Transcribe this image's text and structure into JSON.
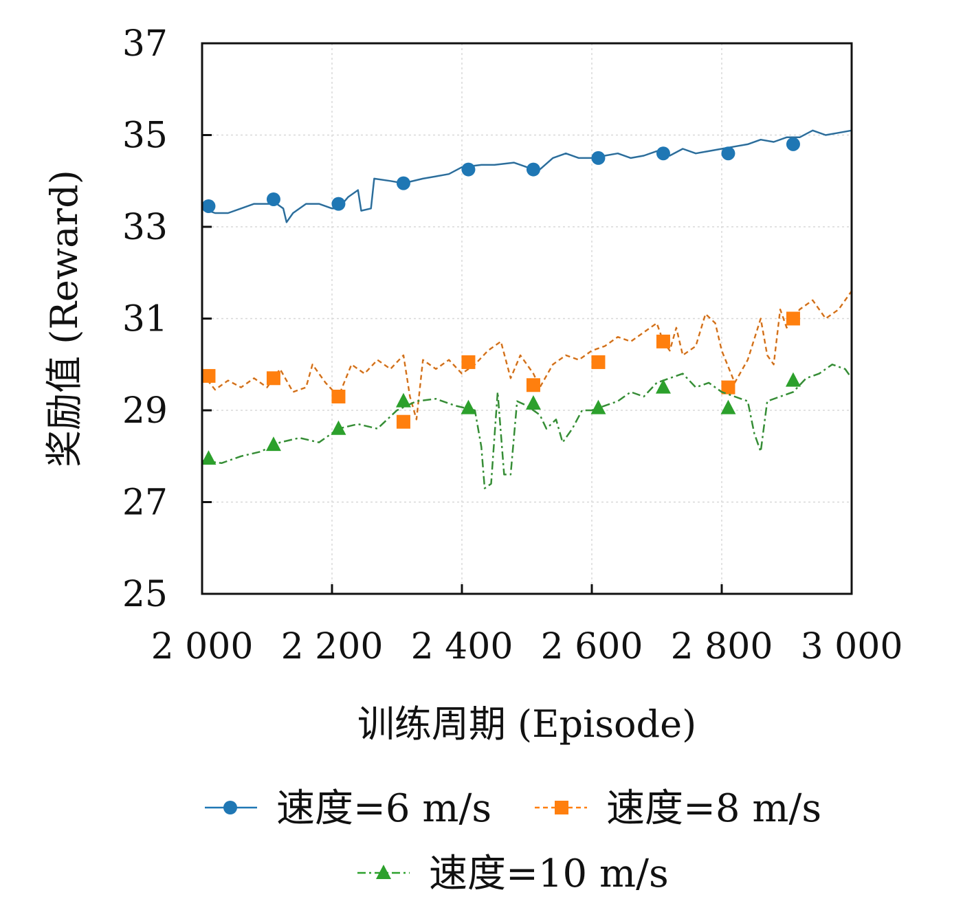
{
  "chart_data": {
    "type": "line",
    "title": "",
    "xlabel": "训练周期 (Episode)",
    "ylabel": "奖励值 (Reward)",
    "xlim": [
      2000,
      3000
    ],
    "ylim": [
      25,
      37
    ],
    "x_ticks": [
      2000,
      2200,
      2400,
      2600,
      2800,
      3000
    ],
    "x_tick_labels": [
      "2 000",
      "2 200",
      "2 400",
      "2 600",
      "2 800",
      "3 000"
    ],
    "y_ticks": [
      25,
      27,
      29,
      31,
      33,
      35,
      37
    ],
    "y_tick_labels": [
      "25",
      "27",
      "29",
      "31",
      "33",
      "35",
      "37"
    ],
    "grid": "light dotted at major ticks",
    "legend_position": "below",
    "series": [
      {
        "name": "速度=6 m/s",
        "color": "#1f77b4",
        "marker": "circle",
        "line_style": "solid",
        "marker_x": [
          2010,
          2110,
          2210,
          2310,
          2410,
          2510,
          2610,
          2710,
          2810,
          2910
        ],
        "marker_y": [
          33.45,
          33.6,
          33.5,
          33.95,
          34.25,
          34.25,
          34.5,
          34.6,
          34.6,
          34.8
        ],
        "line": [
          [
            2000,
            33.4
          ],
          [
            2020,
            33.3
          ],
          [
            2040,
            33.3
          ],
          [
            2060,
            33.4
          ],
          [
            2080,
            33.5
          ],
          [
            2100,
            33.5
          ],
          [
            2115,
            33.5
          ],
          [
            2125,
            33.4
          ],
          [
            2130,
            33.1
          ],
          [
            2140,
            33.3
          ],
          [
            2160,
            33.5
          ],
          [
            2180,
            33.5
          ],
          [
            2200,
            33.4
          ],
          [
            2210,
            33.4
          ],
          [
            2225,
            33.65
          ],
          [
            2240,
            33.8
          ],
          [
            2245,
            33.35
          ],
          [
            2260,
            33.4
          ],
          [
            2265,
            34.05
          ],
          [
            2290,
            34.0
          ],
          [
            2310,
            33.95
          ],
          [
            2340,
            34.05
          ],
          [
            2360,
            34.1
          ],
          [
            2380,
            34.15
          ],
          [
            2400,
            34.3
          ],
          [
            2430,
            34.35
          ],
          [
            2450,
            34.35
          ],
          [
            2480,
            34.4
          ],
          [
            2500,
            34.3
          ],
          [
            2520,
            34.25
          ],
          [
            2540,
            34.5
          ],
          [
            2560,
            34.6
          ],
          [
            2580,
            34.5
          ],
          [
            2600,
            34.5
          ],
          [
            2620,
            34.55
          ],
          [
            2640,
            34.6
          ],
          [
            2660,
            34.5
          ],
          [
            2680,
            34.55
          ],
          [
            2700,
            34.65
          ],
          [
            2720,
            34.55
          ],
          [
            2740,
            34.7
          ],
          [
            2760,
            34.6
          ],
          [
            2780,
            34.65
          ],
          [
            2800,
            34.7
          ],
          [
            2820,
            34.75
          ],
          [
            2840,
            34.8
          ],
          [
            2860,
            34.9
          ],
          [
            2880,
            34.85
          ],
          [
            2900,
            34.95
          ],
          [
            2920,
            34.95
          ],
          [
            2940,
            35.1
          ],
          [
            2960,
            35.0
          ],
          [
            2980,
            35.05
          ],
          [
            3000,
            35.1
          ]
        ]
      },
      {
        "name": "速度=8 m/s",
        "color": "#ff7f0e",
        "marker": "square",
        "line_style": "dashed",
        "marker_x": [
          2010,
          2110,
          2210,
          2310,
          2410,
          2510,
          2610,
          2710,
          2810,
          2910
        ],
        "marker_y": [
          29.75,
          29.7,
          29.3,
          28.75,
          30.05,
          29.55,
          30.05,
          30.5,
          29.5,
          31.0
        ],
        "line": [
          [
            2000,
            29.8
          ],
          [
            2020,
            29.45
          ],
          [
            2040,
            29.65
          ],
          [
            2060,
            29.5
          ],
          [
            2080,
            29.7
          ],
          [
            2100,
            29.5
          ],
          [
            2120,
            29.9
          ],
          [
            2140,
            29.4
          ],
          [
            2160,
            29.5
          ],
          [
            2170,
            30.0
          ],
          [
            2190,
            29.6
          ],
          [
            2210,
            29.3
          ],
          [
            2230,
            30.0
          ],
          [
            2250,
            29.8
          ],
          [
            2270,
            30.1
          ],
          [
            2290,
            29.9
          ],
          [
            2310,
            30.2
          ],
          [
            2320,
            29.3
          ],
          [
            2330,
            28.8
          ],
          [
            2340,
            30.1
          ],
          [
            2360,
            29.9
          ],
          [
            2380,
            30.1
          ],
          [
            2400,
            29.8
          ],
          [
            2420,
            30.0
          ],
          [
            2440,
            30.3
          ],
          [
            2460,
            30.5
          ],
          [
            2475,
            29.7
          ],
          [
            2490,
            30.2
          ],
          [
            2510,
            29.8
          ],
          [
            2520,
            29.5
          ],
          [
            2540,
            30.0
          ],
          [
            2560,
            30.2
          ],
          [
            2580,
            30.1
          ],
          [
            2600,
            30.3
          ],
          [
            2620,
            30.4
          ],
          [
            2640,
            30.6
          ],
          [
            2660,
            30.5
          ],
          [
            2680,
            30.7
          ],
          [
            2700,
            30.9
          ],
          [
            2710,
            30.5
          ],
          [
            2720,
            30.3
          ],
          [
            2730,
            30.8
          ],
          [
            2740,
            30.2
          ],
          [
            2760,
            30.4
          ],
          [
            2775,
            31.1
          ],
          [
            2790,
            30.9
          ],
          [
            2800,
            30.3
          ],
          [
            2820,
            29.6
          ],
          [
            2840,
            30.1
          ],
          [
            2860,
            31.0
          ],
          [
            2870,
            30.2
          ],
          [
            2880,
            30.0
          ],
          [
            2890,
            31.2
          ],
          [
            2900,
            30.8
          ],
          [
            2920,
            31.2
          ],
          [
            2940,
            31.4
          ],
          [
            2960,
            31.0
          ],
          [
            2980,
            31.2
          ],
          [
            3000,
            31.6
          ]
        ]
      },
      {
        "name": "速度=10 m/s",
        "color": "#2ca02c",
        "marker": "triangle",
        "line_style": "dash-dot",
        "marker_x": [
          2010,
          2110,
          2210,
          2310,
          2410,
          2510,
          2610,
          2710,
          2810,
          2910
        ],
        "marker_y": [
          27.95,
          28.25,
          28.6,
          29.2,
          29.05,
          29.15,
          29.05,
          29.5,
          29.05,
          29.65
        ],
        "line": [
          [
            2000,
            27.9
          ],
          [
            2030,
            27.85
          ],
          [
            2060,
            28.0
          ],
          [
            2090,
            28.1
          ],
          [
            2120,
            28.3
          ],
          [
            2150,
            28.4
          ],
          [
            2180,
            28.3
          ],
          [
            2210,
            28.6
          ],
          [
            2240,
            28.7
          ],
          [
            2270,
            28.6
          ],
          [
            2300,
            29.0
          ],
          [
            2330,
            29.2
          ],
          [
            2360,
            29.25
          ],
          [
            2390,
            29.1
          ],
          [
            2420,
            29.0
          ],
          [
            2430,
            28.2
          ],
          [
            2435,
            27.3
          ],
          [
            2445,
            27.4
          ],
          [
            2455,
            29.4
          ],
          [
            2465,
            27.6
          ],
          [
            2475,
            27.6
          ],
          [
            2485,
            29.2
          ],
          [
            2500,
            29.1
          ],
          [
            2520,
            28.9
          ],
          [
            2530,
            28.6
          ],
          [
            2545,
            28.8
          ],
          [
            2555,
            28.3
          ],
          [
            2570,
            28.6
          ],
          [
            2585,
            29.0
          ],
          [
            2600,
            29.0
          ],
          [
            2620,
            29.1
          ],
          [
            2640,
            29.2
          ],
          [
            2660,
            29.4
          ],
          [
            2680,
            29.3
          ],
          [
            2700,
            29.6
          ],
          [
            2720,
            29.7
          ],
          [
            2740,
            29.8
          ],
          [
            2760,
            29.5
          ],
          [
            2780,
            29.6
          ],
          [
            2800,
            29.4
          ],
          [
            2820,
            29.3
          ],
          [
            2840,
            29.2
          ],
          [
            2850,
            28.5
          ],
          [
            2860,
            28.1
          ],
          [
            2870,
            29.2
          ],
          [
            2890,
            29.3
          ],
          [
            2910,
            29.4
          ],
          [
            2930,
            29.7
          ],
          [
            2950,
            29.8
          ],
          [
            2970,
            30.0
          ],
          [
            2990,
            29.9
          ],
          [
            3000,
            29.7
          ]
        ]
      }
    ]
  }
}
